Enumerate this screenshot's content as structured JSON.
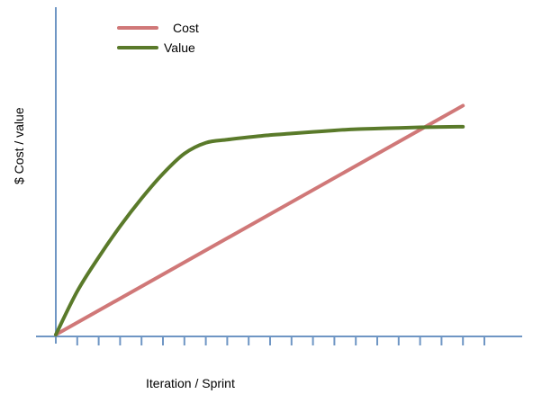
{
  "chart_data": {
    "type": "line",
    "title": "",
    "xlabel": "Iteration / Sprint",
    "ylabel": "$ Cost / value",
    "tick_count": 20,
    "x_range": [
      0,
      20
    ],
    "y_range": [
      0,
      10
    ],
    "x_ticks_labeled": false,
    "y_ticks_labeled": false,
    "grid": false,
    "legend_position": "top-left",
    "series": [
      {
        "name": "Cost",
        "color": "#d07878",
        "x": [
          0,
          19
        ],
        "y": [
          0,
          7.4
        ]
      },
      {
        "name": "Value",
        "color": "#5a7a2a",
        "x": [
          0,
          1,
          2,
          3,
          4,
          5,
          6,
          7,
          8,
          9,
          10,
          11,
          12,
          13,
          14,
          15,
          16,
          17,
          18,
          19
        ],
        "y": [
          0,
          1.4,
          2.5,
          3.5,
          4.4,
          5.2,
          5.85,
          6.2,
          6.3,
          6.38,
          6.45,
          6.5,
          6.55,
          6.6,
          6.64,
          6.66,
          6.68,
          6.7,
          6.71,
          6.72
        ]
      }
    ]
  }
}
